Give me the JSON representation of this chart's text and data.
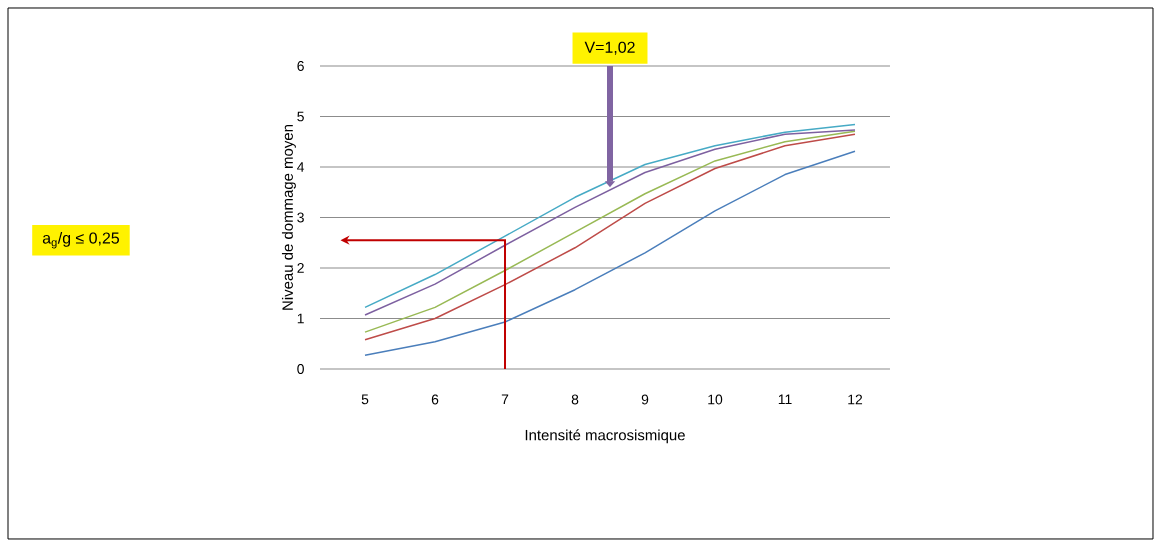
{
  "chart_data": {
    "type": "line",
    "xlabel": "Intensité macrosismique",
    "ylabel": "Niveau de dommage moyen",
    "categories": [
      "5",
      "6",
      "7",
      "8",
      "9",
      "10",
      "11",
      "12"
    ],
    "series": [
      {
        "color": "#4a7ebb",
        "values": [
          0.27,
          0.54,
          0.93,
          1.57,
          2.3,
          3.13,
          3.85,
          4.31
        ]
      },
      {
        "color": "#be4b48",
        "values": [
          0.58,
          1.0,
          1.67,
          2.4,
          3.28,
          3.97,
          4.42,
          4.65
        ]
      },
      {
        "color": "#98b954",
        "values": [
          0.73,
          1.22,
          1.95,
          2.71,
          3.47,
          4.12,
          4.5,
          4.71
        ]
      },
      {
        "color": "#7d60a0",
        "values": [
          1.07,
          1.68,
          2.45,
          3.2,
          3.89,
          4.35,
          4.65,
          4.73
        ]
      },
      {
        "color": "#46aac5",
        "values": [
          1.22,
          1.87,
          2.63,
          3.4,
          4.05,
          4.42,
          4.69,
          4.84
        ]
      }
    ],
    "ylim": [
      0,
      6
    ],
    "yticks": [
      0,
      1,
      2,
      3,
      4,
      5,
      6
    ],
    "grid": "y",
    "marker": "none",
    "line_style": "solid",
    "annotations": [
      "a$_{g}$/g ≤ 0,25",
      {
        "text": "V=1,02",
        "y": 3.6
      }
    ]
  }
}
